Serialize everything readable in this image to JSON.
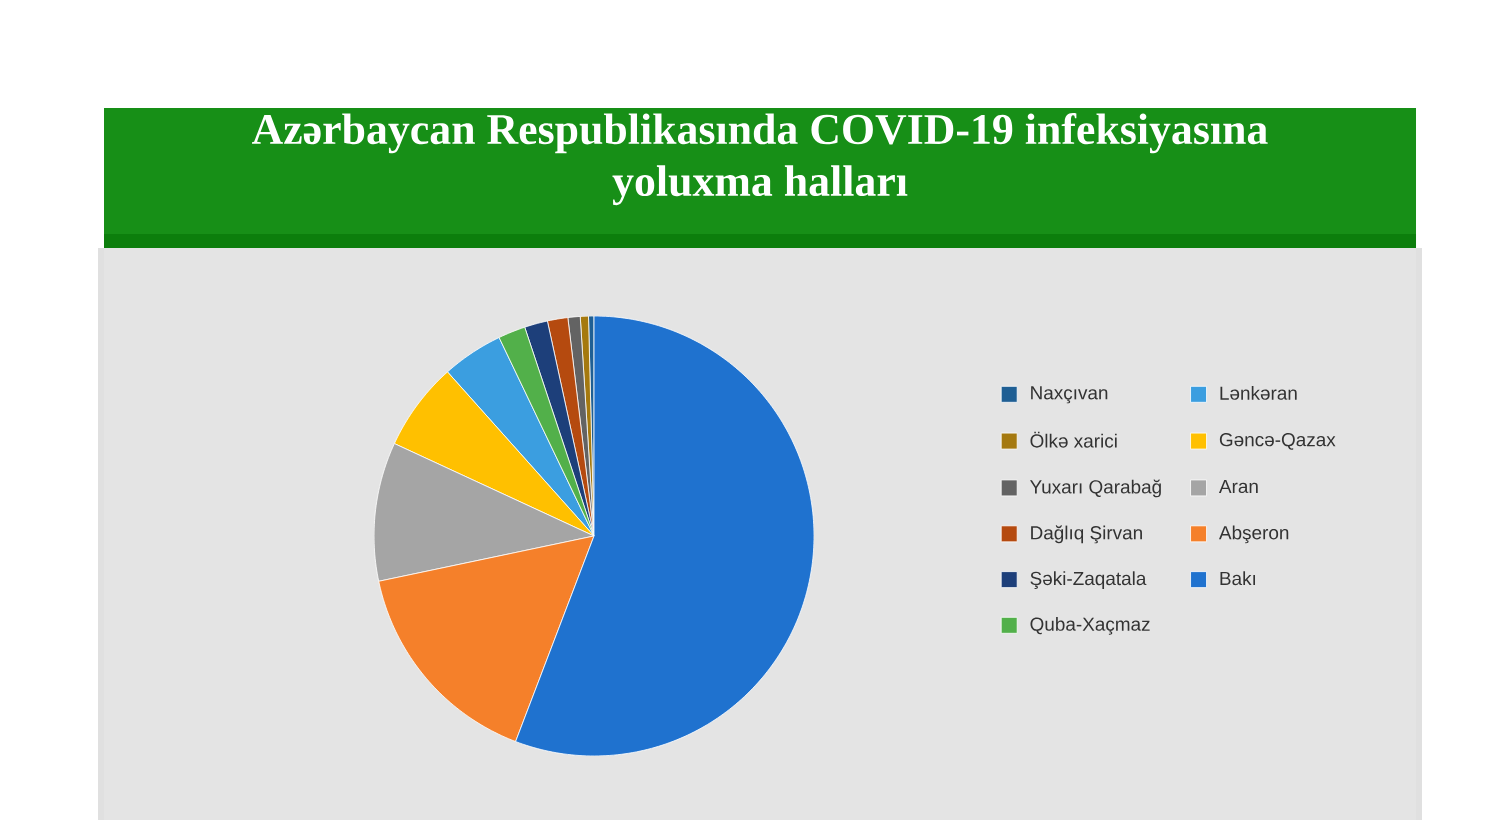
{
  "chart_data": {
    "type": "pie",
    "title": "Azərbaycan Respublikasında COVID-19 infeksiyasına yoluxma halları",
    "categories": [
      "Naxçıvan",
      "Ölkə xarici",
      "Yuxarı Qarabağ",
      "Dağlıq Şirvan",
      "Şəki-Zaqatala",
      "Quba-Xaçmaz",
      "Lənkəran",
      "Gəncə-Qazax",
      "Aran",
      "Abşeron",
      "Bakı"
    ],
    "values": [
      0.4,
      0.6,
      0.9,
      1.5,
      1.7,
      2.0,
      4.5,
      6.5,
      10.2,
      15.9,
      55.8
    ],
    "colors": [
      "#1f5f94",
      "#a5790f",
      "#636363",
      "#b54a0f",
      "#1d3f7a",
      "#52b04a",
      "#3b9ee0",
      "#ffc000",
      "#a5a5a5",
      "#f5802a",
      "#1f72cf"
    ],
    "legend": "right"
  }
}
